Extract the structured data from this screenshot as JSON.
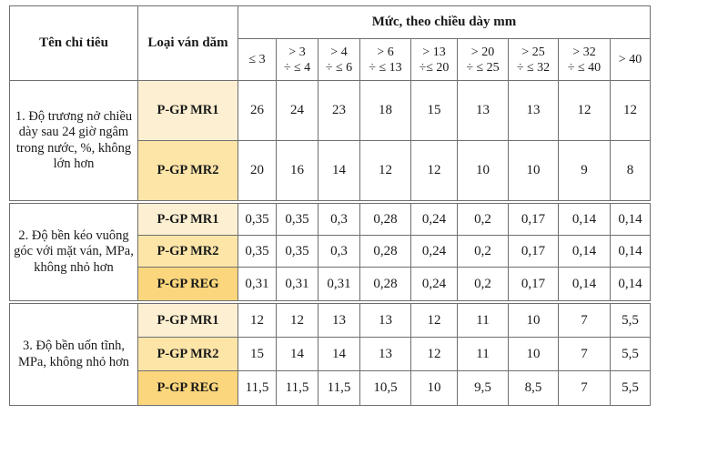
{
  "headers": {
    "criteria": "Tên chỉ tiêu",
    "board_type": "Loại ván dăm",
    "level_group": "Mức, theo chiều dày mm",
    "thickness": [
      {
        "l1": "≤ 3",
        "l2": ""
      },
      {
        "l1": "> 3",
        "l2": "÷ ≤ 4"
      },
      {
        "l1": "> 4",
        "l2": "÷ ≤ 6"
      },
      {
        "l1": "> 6",
        "l2": "÷ ≤ 13"
      },
      {
        "l1": "> 13",
        "l2": "÷≤ 20"
      },
      {
        "l1": "> 20",
        "l2": "÷ ≤ 25"
      },
      {
        "l1": "> 25",
        "l2": "÷ ≤ 32"
      },
      {
        "l1": "> 32",
        "l2": "÷ ≤ 40"
      },
      {
        "l1": "> 40",
        "l2": ""
      }
    ]
  },
  "groups": [
    {
      "criteria": "1. Độ trương nở chiều dày sau 24 giờ ngâm trong nước, %, không lớn hơn",
      "rows": [
        {
          "type": "P-GP MR1",
          "values": [
            "26",
            "24",
            "23",
            "18",
            "15",
            "13",
            "13",
            "12",
            "12"
          ]
        },
        {
          "type": "P-GP MR2",
          "values": [
            "20",
            "16",
            "14",
            "12",
            "12",
            "10",
            "10",
            "9",
            "8"
          ]
        }
      ]
    },
    {
      "criteria": "2. Độ bền kéo vuông góc với mặt ván, MPa, không nhỏ hơn",
      "rows": [
        {
          "type": "P-GP MR1",
          "values": [
            "0,35",
            "0,35",
            "0,3",
            "0,28",
            "0,24",
            "0,2",
            "0,17",
            "0,14",
            "0,14"
          ]
        },
        {
          "type": "P-GP MR2",
          "values": [
            "0,35",
            "0,35",
            "0,3",
            "0,28",
            "0,24",
            "0,2",
            "0,17",
            "0,14",
            "0,14"
          ]
        },
        {
          "type": "P-GP REG",
          "values": [
            "0,31",
            "0,31",
            "0,31",
            "0,28",
            "0,24",
            "0,2",
            "0,17",
            "0,14",
            "0,14"
          ]
        }
      ]
    },
    {
      "criteria": "3. Độ bền uốn tĩnh, MPa, không nhỏ hơn",
      "rows": [
        {
          "type": "P-GP MR1",
          "values": [
            "12",
            "12",
            "13",
            "13",
            "12",
            "11",
            "10",
            "7",
            "5,5"
          ]
        },
        {
          "type": "P-GP MR2",
          "values": [
            "15",
            "14",
            "14",
            "13",
            "12",
            "11",
            "10",
            "7",
            "5,5"
          ]
        },
        {
          "type": "P-GP REG",
          "values": [
            "11,5",
            "11,5",
            "11,5",
            "10,5",
            "10",
            "9,5",
            "8,5",
            "7",
            "5,5"
          ]
        }
      ]
    }
  ],
  "colors": {
    "mr1_fill": "#fdf0d2",
    "mr2_fill": "#fde5a8",
    "reg_fill": "#fbd67c",
    "border": "#6f6f6f"
  }
}
